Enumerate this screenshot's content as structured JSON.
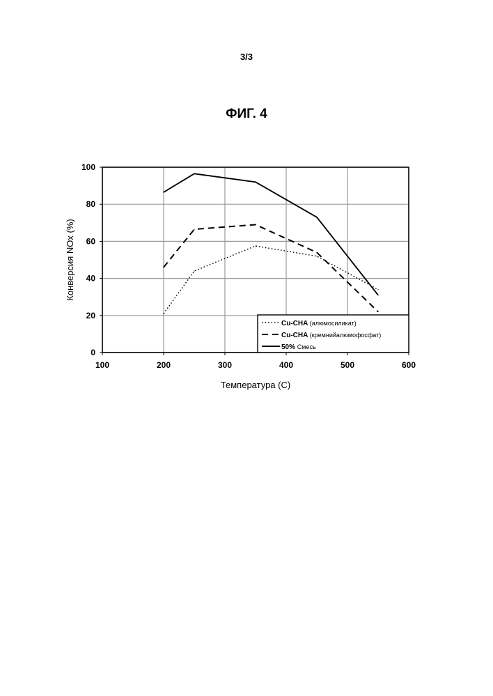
{
  "page": {
    "number": "3/3",
    "figure": "ФИГ. 4"
  },
  "chart_data": {
    "type": "line",
    "title": "",
    "xlabel": "Температура (С)",
    "ylabel": "Конверсия NOx (%)",
    "xlim": [
      100,
      600
    ],
    "ylim": [
      0,
      100
    ],
    "xticks": [
      100,
      200,
      300,
      400,
      500,
      600
    ],
    "yticks": [
      0,
      20,
      40,
      60,
      80,
      100
    ],
    "grid": true,
    "legend_position": "bottom-right",
    "series": [
      {
        "name_bold": "Cu-CHA",
        "name_rest": "(алюмосиликат)",
        "style": "dotted",
        "x": [
          200,
          250,
          350,
          450,
          550
        ],
        "y": [
          21,
          44,
          57.5,
          52,
          34
        ]
      },
      {
        "name_bold": "Cu-CHA",
        "name_rest": "(кремнийалюмофосфат)",
        "style": "dashed",
        "x": [
          200,
          250,
          350,
          450,
          550
        ],
        "y": [
          46,
          66.5,
          69,
          54,
          22
        ]
      },
      {
        "name_bold": "50%",
        "name_rest": "Смесь",
        "style": "solid",
        "x": [
          200,
          250,
          350,
          450,
          550
        ],
        "y": [
          86.5,
          96.5,
          92,
          73,
          31
        ]
      }
    ]
  }
}
